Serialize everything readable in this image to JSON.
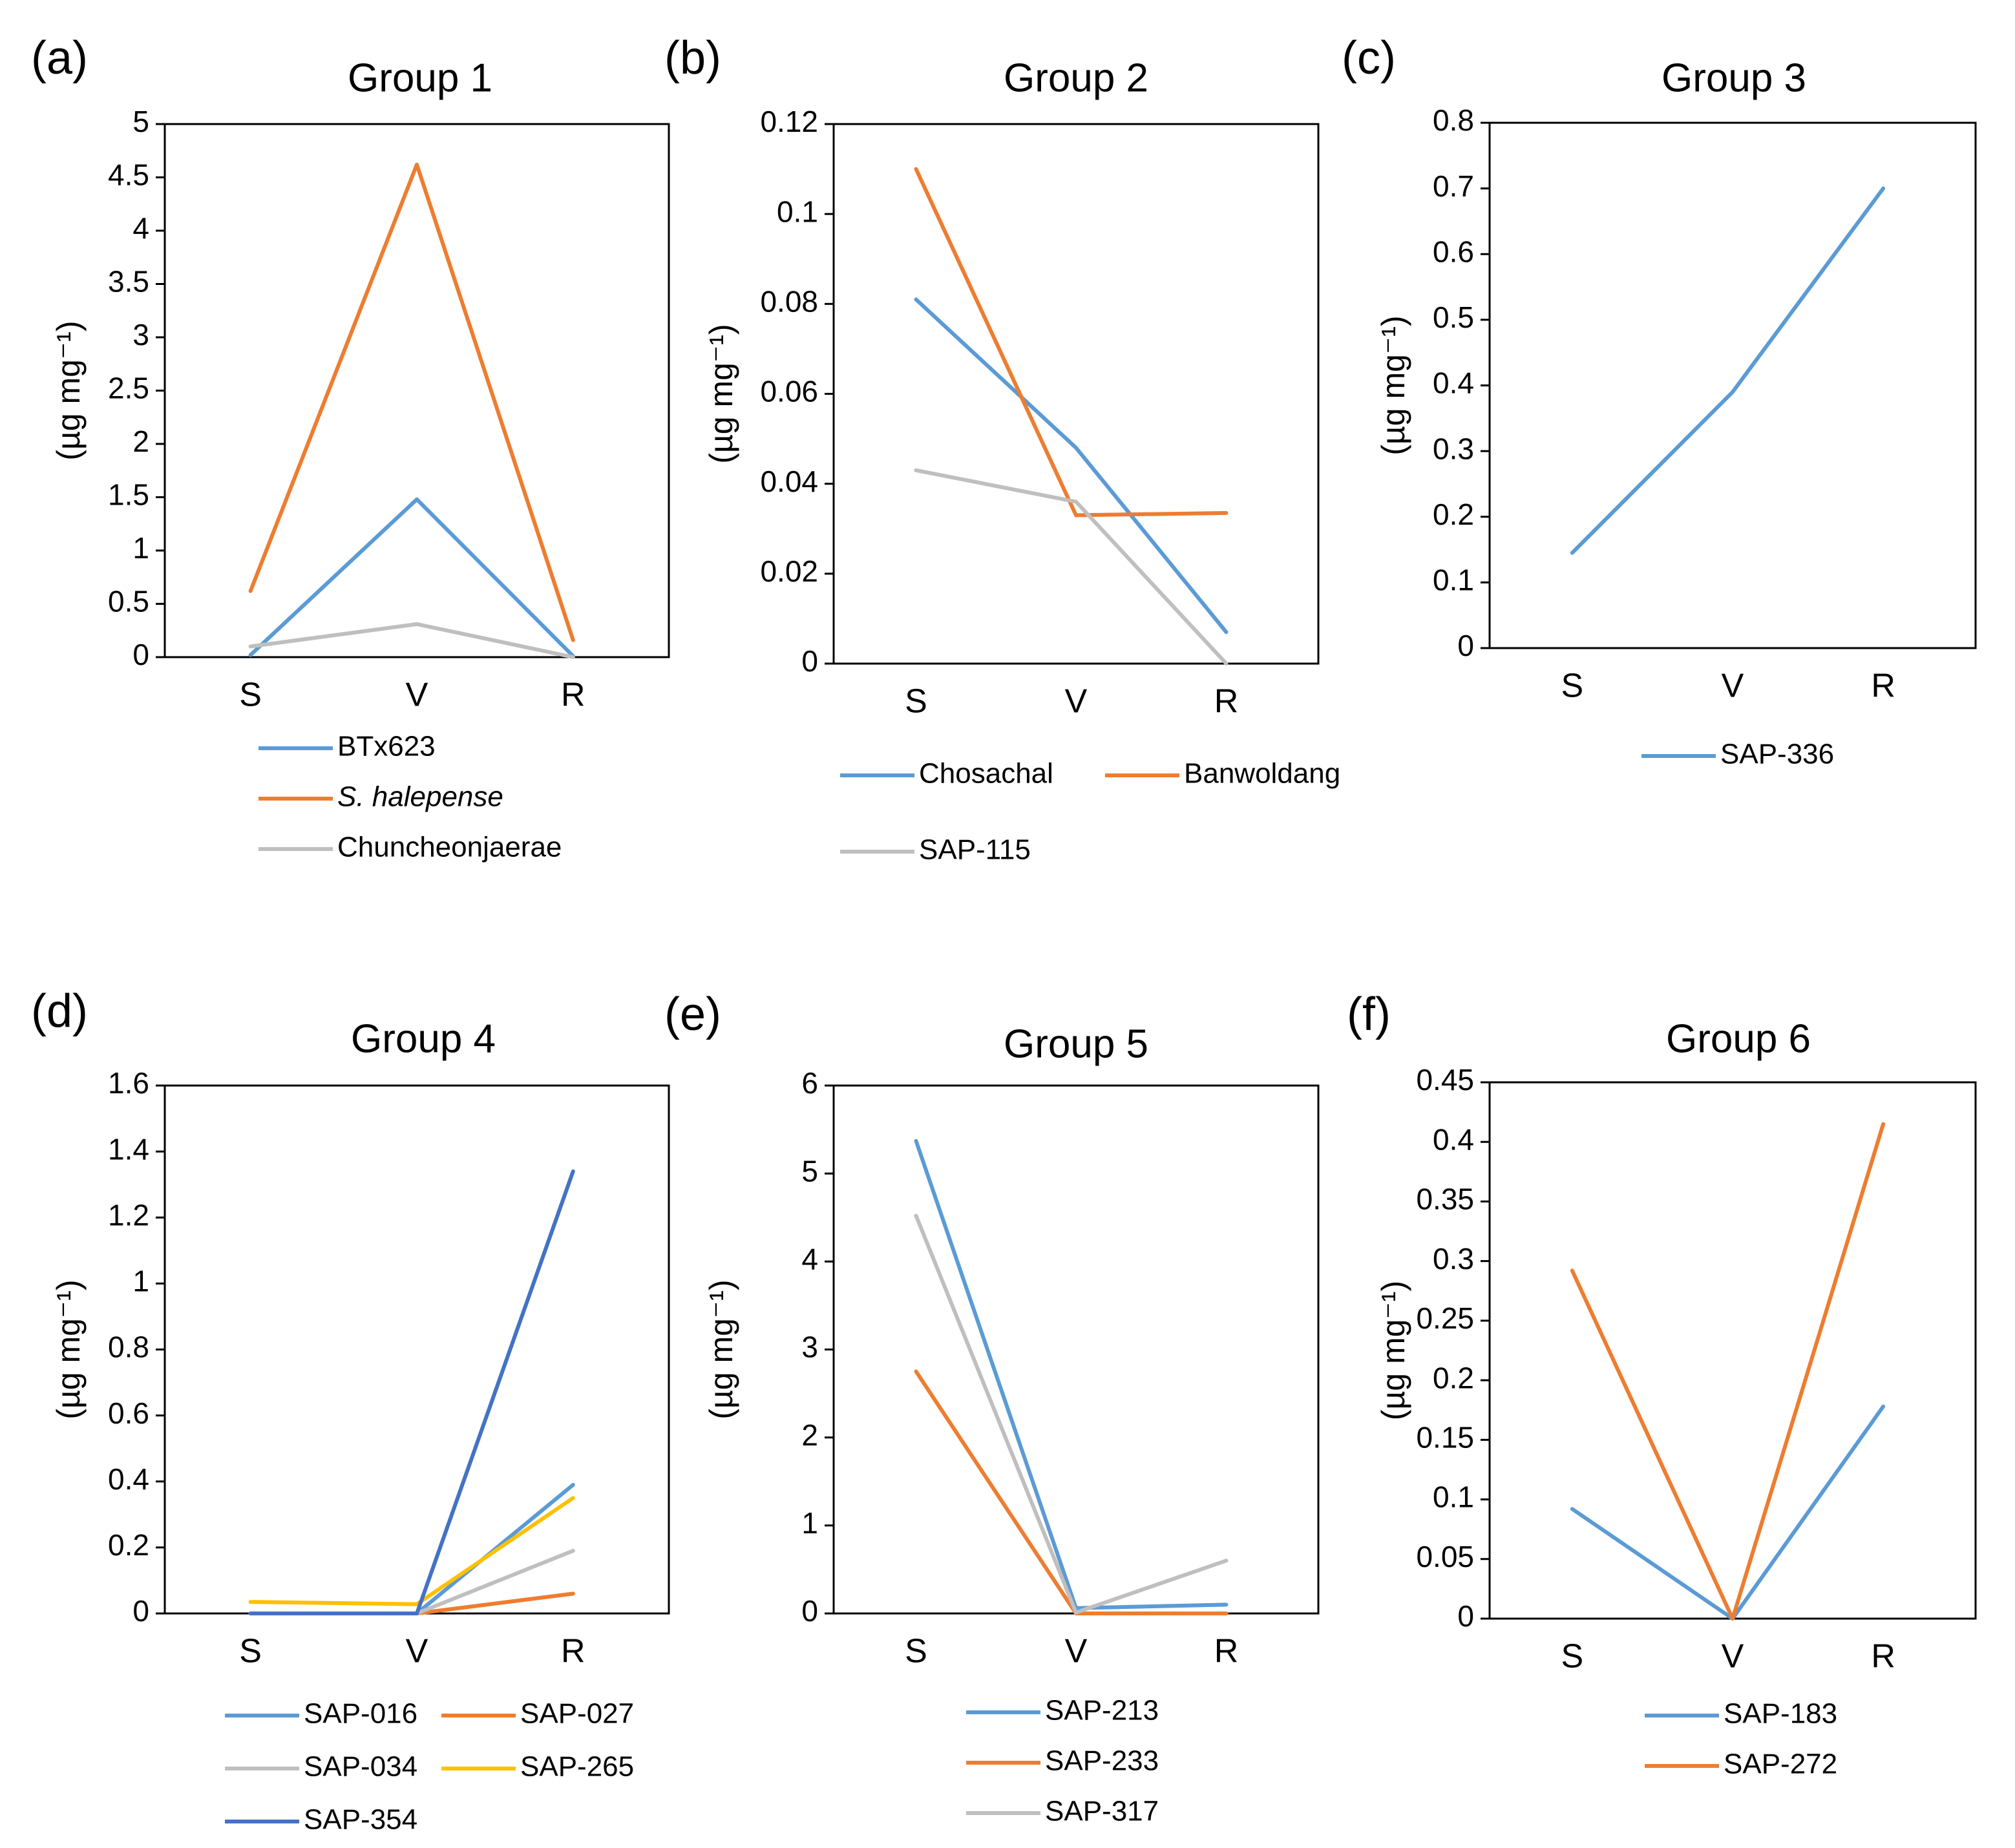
{
  "figure": {
    "ylabel": "(µg mg⁻¹)",
    "categories": [
      "S",
      "V",
      "R"
    ]
  },
  "chart_data": [
    {
      "panel": "(a)",
      "type": "line",
      "title": "Group 1",
      "xlabel": "",
      "ylabel": "(µg mg⁻¹)",
      "categories": [
        "S",
        "V",
        "R"
      ],
      "ylim": [
        0,
        5
      ],
      "yticks": [
        0,
        0.5,
        1,
        1.5,
        2,
        2.5,
        3,
        3.5,
        4,
        4.5,
        5
      ],
      "yticklabels": [
        "0",
        "0.5",
        "1",
        "1.5",
        "2",
        "2.5",
        "3",
        "3.5",
        "4",
        "4.5",
        "5"
      ],
      "legend_layout": "one-column",
      "series": [
        {
          "name": "BTx623",
          "color": "#5b9bd5",
          "values": [
            0.02,
            1.48,
            0.01
          ]
        },
        {
          "name": "S. halepense",
          "italic": true,
          "color": "#ed7d31",
          "values": [
            0.62,
            4.62,
            0.16
          ]
        },
        {
          "name": "Chuncheonjaerae",
          "color": "#bfbfbf",
          "values": [
            0.1,
            0.31,
            0.0
          ]
        }
      ]
    },
    {
      "panel": "(b)",
      "type": "line",
      "title": "Group 2",
      "xlabel": "",
      "ylabel": "(µg mg⁻¹)",
      "categories": [
        "S",
        "V",
        "R"
      ],
      "ylim": [
        0,
        0.12
      ],
      "yticks": [
        0,
        0.02,
        0.04,
        0.06,
        0.08,
        0.1,
        0.12
      ],
      "yticklabels": [
        "0",
        "0.02",
        "0.04",
        "0.06",
        "0.08",
        "0.1",
        "0.12"
      ],
      "legend_layout": "two-column",
      "series": [
        {
          "name": "Chosachal",
          "color": "#5b9bd5",
          "values": [
            0.081,
            0.048,
            0.007
          ]
        },
        {
          "name": "Banwoldang",
          "color": "#ed7d31",
          "values": [
            0.11,
            0.033,
            0.0335
          ]
        },
        {
          "name": "SAP-115",
          "color": "#bfbfbf",
          "values": [
            0.043,
            0.036,
            0.0
          ]
        }
      ]
    },
    {
      "panel": "(c)",
      "type": "line",
      "title": "Group 3",
      "xlabel": "",
      "ylabel": "(µg mg⁻¹)",
      "categories": [
        "S",
        "V",
        "R"
      ],
      "ylim": [
        0,
        0.8
      ],
      "yticks": [
        0,
        0.1,
        0.2,
        0.3,
        0.4,
        0.5,
        0.6,
        0.7,
        0.8
      ],
      "yticklabels": [
        "0",
        "0.1",
        "0.2",
        "0.3",
        "0.4",
        "0.5",
        "0.6",
        "0.7",
        "0.8"
      ],
      "legend_layout": "one-column",
      "series": [
        {
          "name": "SAP-336",
          "color": "#5b9bd5",
          "values": [
            0.145,
            0.39,
            0.7
          ]
        }
      ]
    },
    {
      "panel": "(d)",
      "type": "line",
      "title": "Group 4",
      "xlabel": "",
      "ylabel": "(µg mg⁻¹)",
      "categories": [
        "S",
        "V",
        "R"
      ],
      "ylim": [
        0,
        1.6
      ],
      "yticks": [
        0,
        0.2,
        0.4,
        0.6,
        0.8,
        1,
        1.2,
        1.4,
        1.6
      ],
      "yticklabels": [
        "0",
        "0.2",
        "0.4",
        "0.6",
        "0.8",
        "1",
        "1.2",
        "1.4",
        "1.6"
      ],
      "legend_layout": "two-column",
      "series": [
        {
          "name": "SAP-016",
          "color": "#5b9bd5",
          "values": [
            0.0,
            0.0,
            0.39
          ]
        },
        {
          "name": "SAP-027",
          "color": "#ed7d31",
          "values": [
            0.0,
            0.0,
            0.06
          ]
        },
        {
          "name": "SAP-034",
          "color": "#bfbfbf",
          "values": [
            0.0,
            0.0,
            0.19
          ]
        },
        {
          "name": "SAP-265",
          "color": "#ffc000",
          "values": [
            0.035,
            0.028,
            0.35
          ]
        },
        {
          "name": "SAP-354",
          "color": "#4472c4",
          "values": [
            0.0,
            0.0,
            1.34
          ]
        }
      ]
    },
    {
      "panel": "(e)",
      "type": "line",
      "title": "Group 5",
      "xlabel": "",
      "ylabel": "(µg mg⁻¹)",
      "categories": [
        "S",
        "V",
        "R"
      ],
      "ylim": [
        0,
        6
      ],
      "yticks": [
        0,
        1,
        2,
        3,
        4,
        5,
        6
      ],
      "yticklabels": [
        "0",
        "1",
        "2",
        "3",
        "4",
        "5",
        "6"
      ],
      "legend_layout": "one-column",
      "series": [
        {
          "name": "SAP-213",
          "color": "#5b9bd5",
          "values": [
            5.37,
            0.06,
            0.1
          ]
        },
        {
          "name": "SAP-233",
          "color": "#ed7d31",
          "values": [
            2.75,
            0.0,
            0.0
          ]
        },
        {
          "name": "SAP-317",
          "color": "#bfbfbf",
          "values": [
            4.52,
            0.01,
            0.6
          ]
        }
      ]
    },
    {
      "panel": "(f)",
      "type": "line",
      "title": "Group 6",
      "xlabel": "",
      "ylabel": "(µg mg⁻¹)",
      "categories": [
        "S",
        "V",
        "R"
      ],
      "ylim": [
        0,
        0.45
      ],
      "yticks": [
        0,
        0.05,
        0.1,
        0.15,
        0.2,
        0.25,
        0.3,
        0.35,
        0.4,
        0.45
      ],
      "yticklabels": [
        "0",
        "0.05",
        "0.1",
        "0.15",
        "0.2",
        "0.25",
        "0.3",
        "0.35",
        "0.4",
        "0.45"
      ],
      "legend_layout": "one-column",
      "series": [
        {
          "name": "SAP-183",
          "color": "#5b9bd5",
          "values": [
            0.092,
            0.0,
            0.178
          ]
        },
        {
          "name": "SAP-272",
          "color": "#ed7d31",
          "values": [
            0.292,
            0.0,
            0.415
          ]
        }
      ]
    }
  ]
}
